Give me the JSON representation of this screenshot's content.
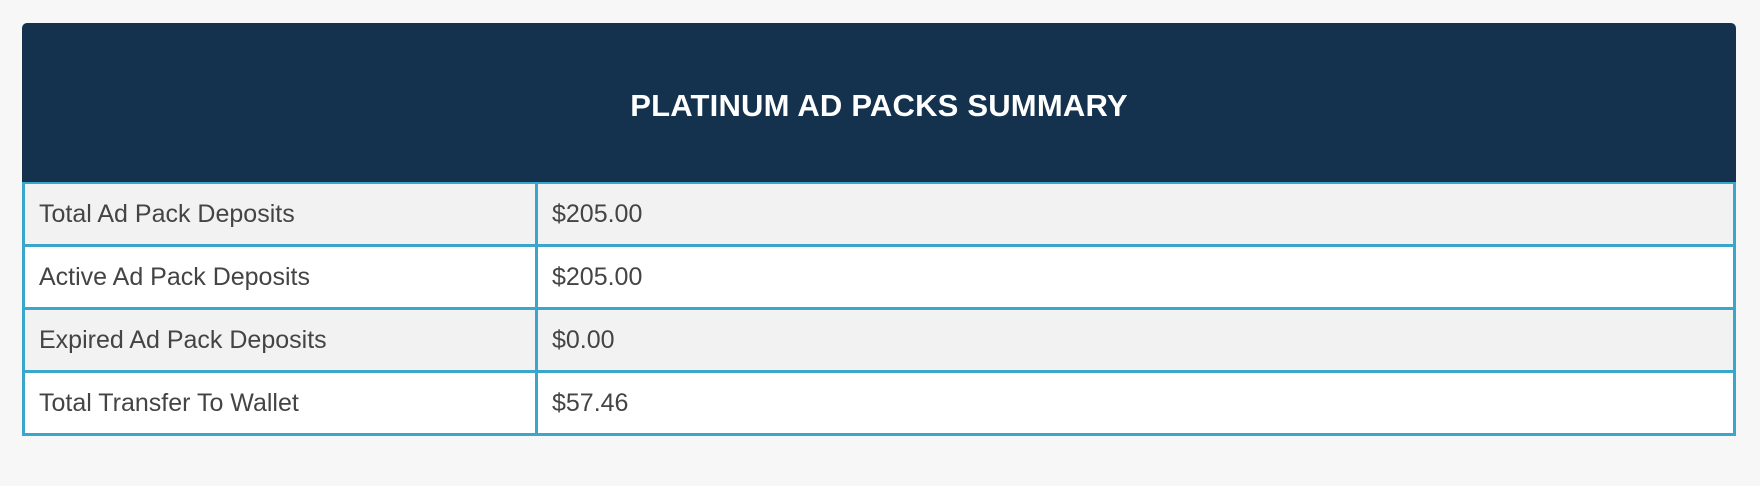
{
  "summary": {
    "title": "PLATINUM AD PACKS SUMMARY",
    "rows": [
      {
        "label": "Total Ad Pack Deposits",
        "value": "$205.00"
      },
      {
        "label": "Active Ad Pack Deposits",
        "value": "$205.00"
      },
      {
        "label": "Expired Ad Pack Deposits",
        "value": "$0.00"
      },
      {
        "label": "Total Transfer To Wallet",
        "value": "$57.46"
      }
    ]
  },
  "colors": {
    "header_background": "#14324d",
    "table_border": "#3aa6cc",
    "row_alt_background": "#f2f2f2"
  }
}
